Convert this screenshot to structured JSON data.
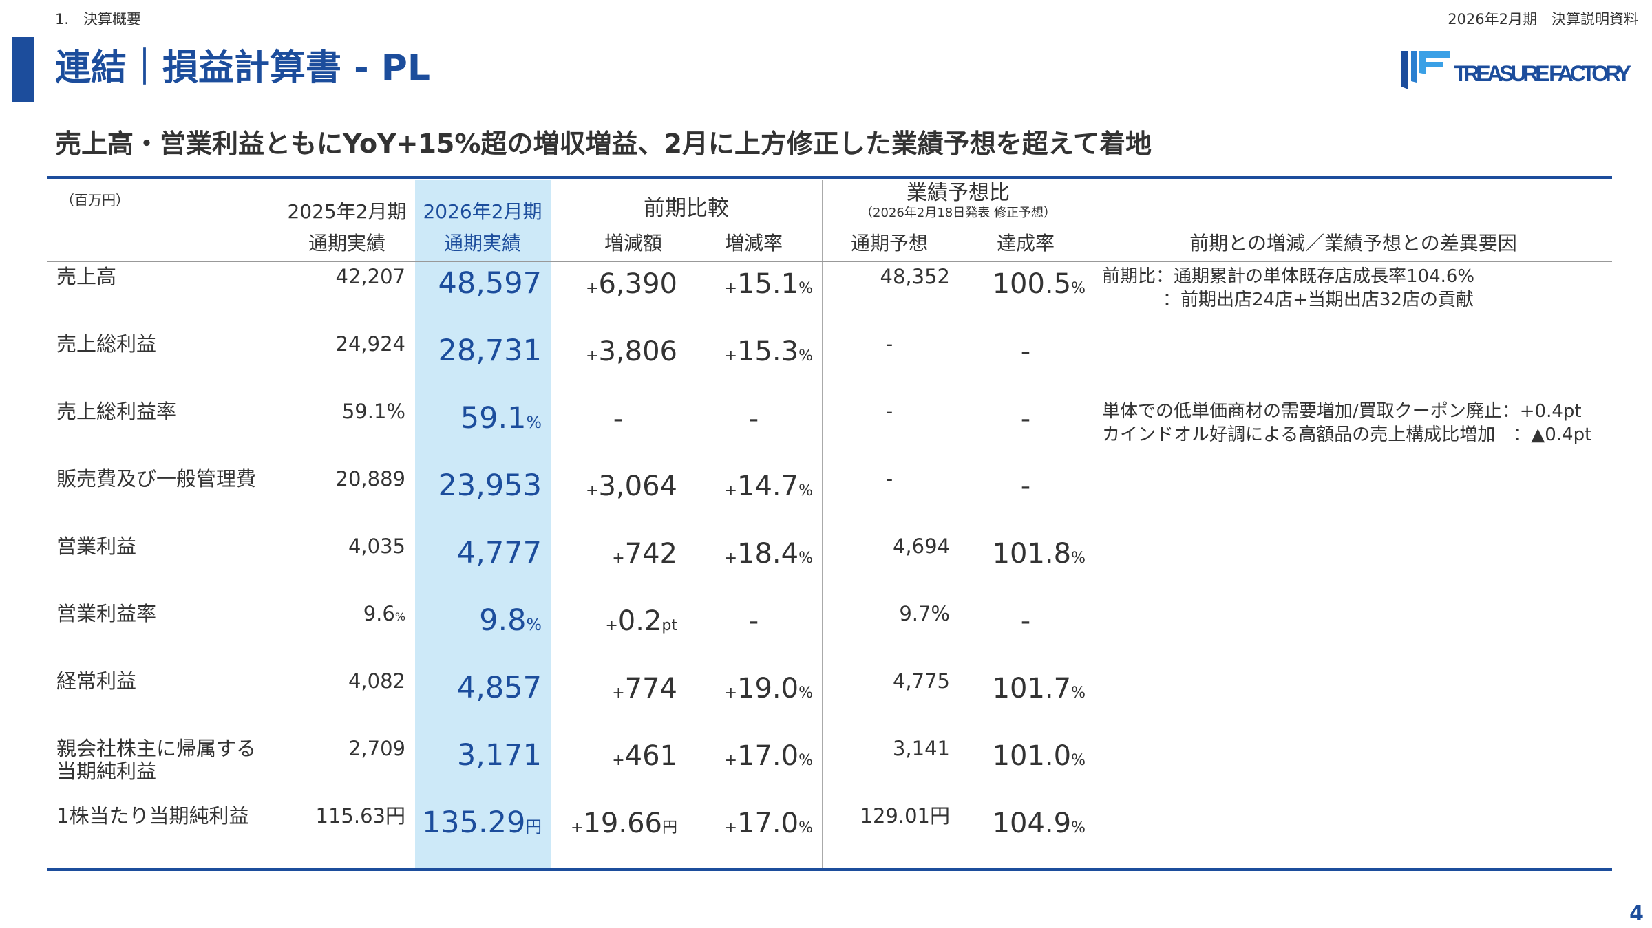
{
  "header": {
    "section": "1.　決算概要",
    "doc": "2026年2月期　決算説明資料",
    "title": "連結｜損益計算書 - PL",
    "logo": "TREASURE FACTORY",
    "subtitle": "売上高・営業利益ともにYoY+15%超の増収増益、2月に上方修正した業績予想を超えて着地"
  },
  "table": {
    "unit": "（百万円）",
    "headers": {
      "prev_top": "2025年2月期",
      "prev": "通期実績",
      "cur_top": "2026年2月期",
      "cur": "通期実績",
      "comp": "前期比較",
      "diff": "増減額",
      "rate": "増減率",
      "fc_top": "業績予想比",
      "fc_sub": "（2026年2月18日発表 修正予想）",
      "fc": "通期予想",
      "ach": "達成率",
      "notes": "前期との増減／業績予想との差異要因"
    },
    "rows": [
      {
        "label": "売上高",
        "prev": "42,207",
        "cur": "48,597",
        "diff": {
          "pre": "+",
          "num": "6,390"
        },
        "rate": {
          "pre": "+",
          "num": "15.1",
          "suf": "%"
        },
        "fc": "48,352",
        "ach": {
          "num": "100.5",
          "suf": "%"
        },
        "notes": [
          "前期比：通期累計の単体既存店成長率104.6%",
          "：前期出店24店+当期出店32店の貢献"
        ]
      },
      {
        "label": "売上総利益",
        "prev": "24,924",
        "cur": "28,731",
        "diff": {
          "pre": "+",
          "num": "3,806"
        },
        "rate": {
          "pre": "+",
          "num": "15.3",
          "suf": "%"
        },
        "fc": "-",
        "ach": "-"
      },
      {
        "label": "売上総利益率",
        "prev": "59.1%",
        "cur": {
          "num": "59.1",
          "suf": "%"
        },
        "diff": "-",
        "rate": "-",
        "fc": "-",
        "ach": "-",
        "notes": [
          "単体での低単価商材の需要増加/買取クーポン廃止：+0.4pt",
          "カインドオル好調による高額品の売上構成比増加　：▲0.4pt"
        ]
      },
      {
        "label": "販売費及び一般管理費",
        "prev": "20,889",
        "cur": "23,953",
        "diff": {
          "pre": "+",
          "num": "3,064"
        },
        "rate": {
          "pre": "+",
          "num": "14.7",
          "suf": "%"
        },
        "fc": "-",
        "ach": "-"
      },
      {
        "label": "営業利益",
        "prev": "4,035",
        "cur": "4,777",
        "diff": {
          "pre": "+",
          "num": "742"
        },
        "rate": {
          "pre": "+",
          "num": "18.4",
          "suf": "%"
        },
        "fc": "4,694",
        "ach": {
          "num": "101.8",
          "suf": "%"
        }
      },
      {
        "label": "営業利益率",
        "prev": {
          "num": "9.6",
          "suf": "%"
        },
        "cur": {
          "num": "9.8",
          "suf": "%"
        },
        "diff": {
          "pre": "+",
          "num": "0.2",
          "suf": "pt"
        },
        "rate": "-",
        "fc": "9.7%",
        "ach": "-"
      },
      {
        "label": "経常利益",
        "prev": "4,082",
        "cur": "4,857",
        "diff": {
          "pre": "+",
          "num": "774"
        },
        "rate": {
          "pre": "+",
          "num": "19.0",
          "suf": "%"
        },
        "fc": "4,775",
        "ach": {
          "num": "101.7",
          "suf": "%"
        }
      },
      {
        "label": "親会社株主に帰属する\n当期純利益",
        "prev": "2,709",
        "cur": "3,171",
        "diff": {
          "pre": "+",
          "num": "461"
        },
        "rate": {
          "pre": "+",
          "num": "17.0",
          "suf": "%"
        },
        "fc": "3,141",
        "ach": {
          "num": "101.0",
          "suf": "%"
        }
      },
      {
        "label": "1株当たり当期純利益",
        "prev": "115.63円",
        "cur": {
          "num": "135.29",
          "suf": "円"
        },
        "diff": {
          "pre": "+",
          "num": "19.66",
          "suf": "円"
        },
        "rate": {
          "pre": "+",
          "num": "17.0",
          "suf": "%"
        },
        "fc": "129.01円",
        "ach": {
          "num": "104.9",
          "suf": "%"
        }
      }
    ]
  },
  "footer": {
    "page": "4"
  }
}
